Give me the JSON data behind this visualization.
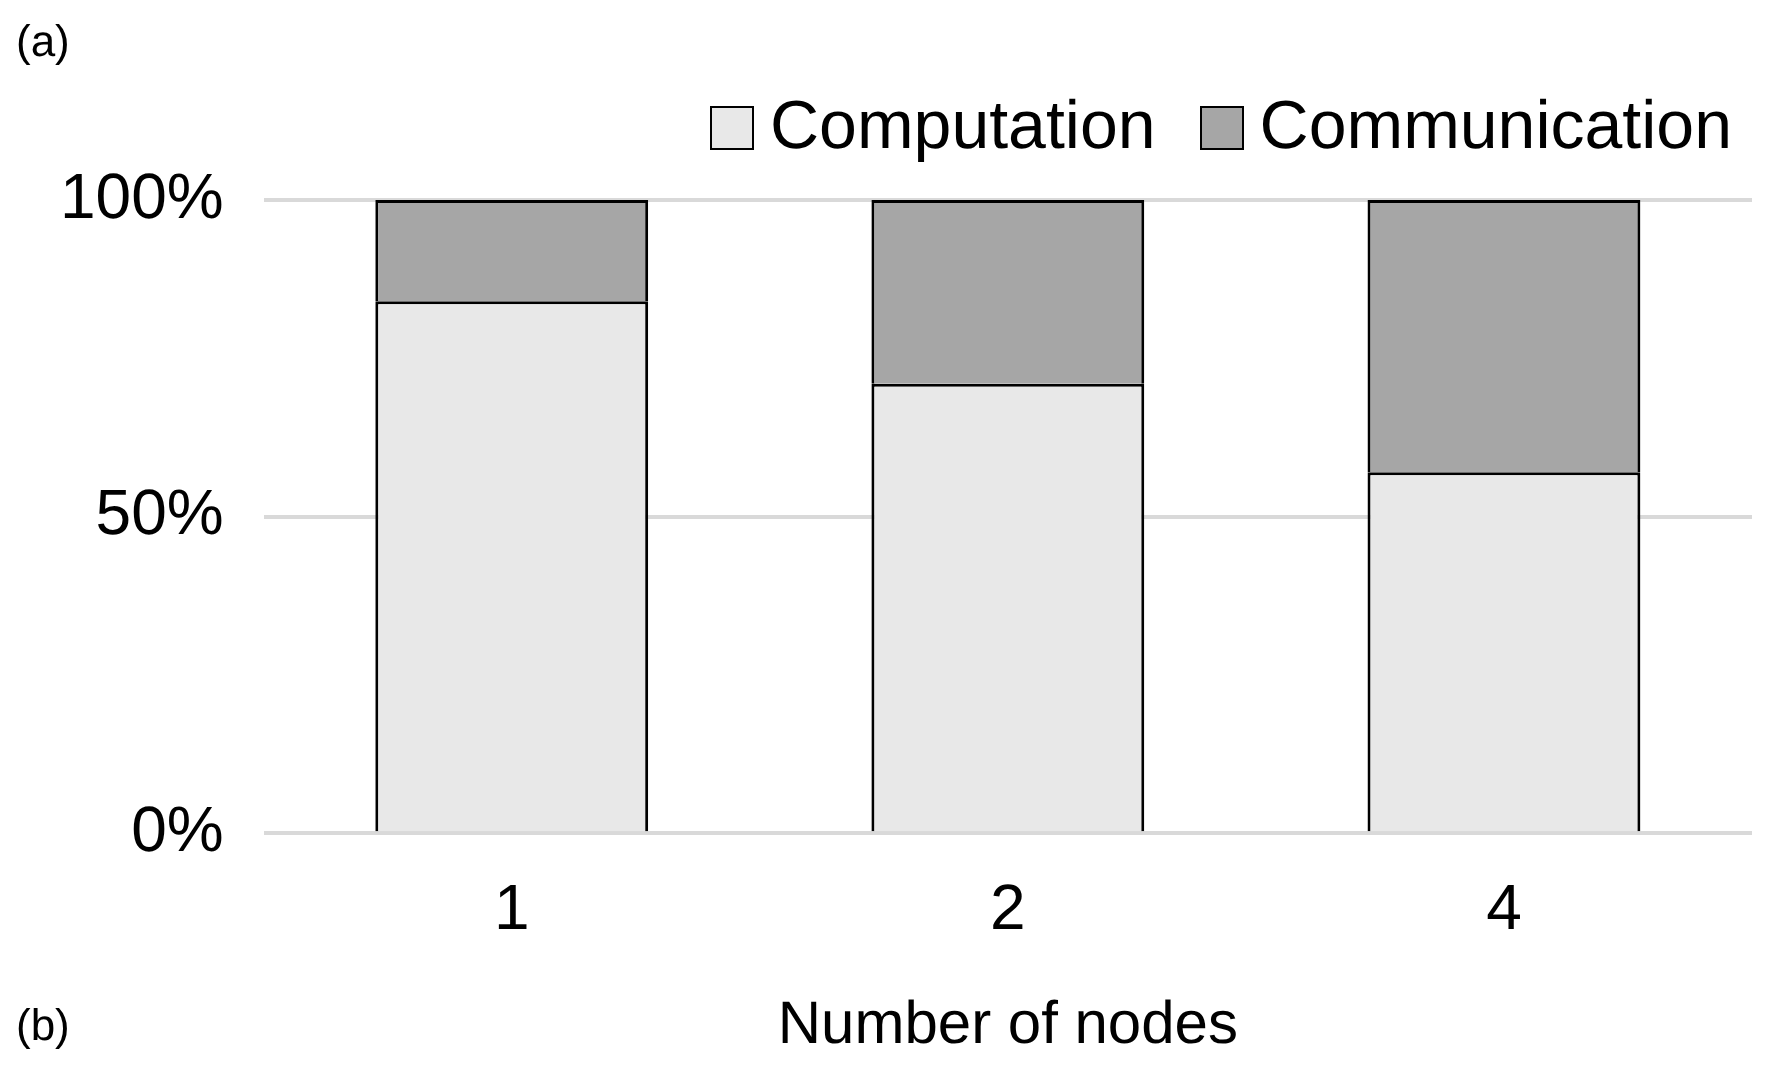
{
  "chart_data": {
    "type": "bar",
    "stacked": true,
    "categories": [
      "1",
      "2",
      "4"
    ],
    "series": [
      {
        "name": "Computation",
        "color": "#e8e8e8",
        "values": [
          84,
          71,
          57
        ]
      },
      {
        "name": "Communication",
        "color": "#a6a6a6",
        "values": [
          16,
          29,
          43
        ]
      }
    ],
    "ylim": [
      0,
      100
    ],
    "yticks": [
      {
        "value": 0,
        "label": "0%"
      },
      {
        "value": 50,
        "label": "50%"
      },
      {
        "value": 100,
        "label": "100%"
      }
    ],
    "xlabel": "Number of nodes",
    "grid": "y",
    "legend": "top",
    "annotations": [
      "(a)",
      "(b)"
    ]
  }
}
